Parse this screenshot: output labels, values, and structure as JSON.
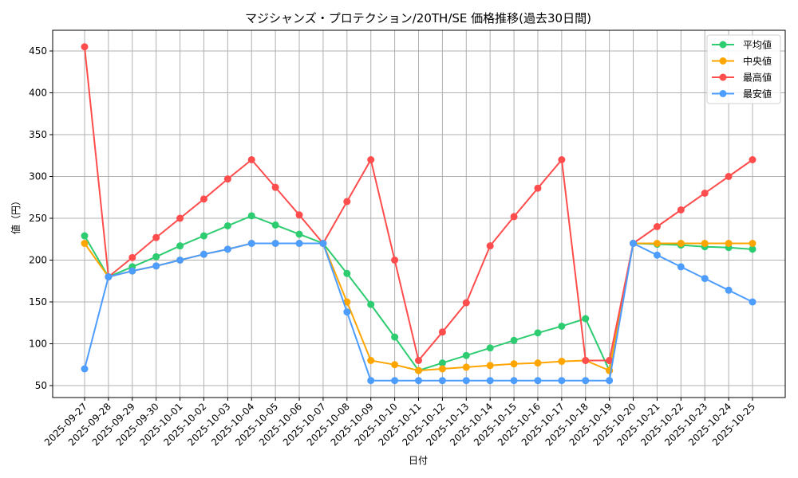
{
  "chart_data": {
    "type": "line",
    "title": "マジシャンズ・プロテクション/20TH/SE 価格推移(過去30日間)",
    "xlabel": "日付",
    "ylabel": "値（円）",
    "ylim": [
      35,
      475
    ],
    "yticks": [
      50,
      100,
      150,
      200,
      250,
      300,
      350,
      400,
      450
    ],
    "grid": true,
    "legend_position": "upper right",
    "categories": [
      "2025-09-27",
      "2025-09-28",
      "2025-09-29",
      "2025-09-30",
      "2025-10-01",
      "2025-10-02",
      "2025-10-03",
      "2025-10-04",
      "2025-10-05",
      "2025-10-06",
      "2025-10-07",
      "2025-10-08",
      "2025-10-09",
      "2025-10-10",
      "2025-10-11",
      "2025-10-12",
      "2025-10-13",
      "2025-10-14",
      "2025-10-15",
      "2025-10-16",
      "2025-10-17",
      "2025-10-18",
      "2025-10-19",
      "2025-10-20",
      "2025-10-21",
      "2025-10-22",
      "2025-10-23",
      "2025-10-24",
      "2025-10-25"
    ],
    "series": [
      {
        "name": "平均値",
        "color": "#2ecc71",
        "values": [
          229,
          180,
          192,
          204,
          217,
          229,
          241,
          253,
          242,
          231,
          220,
          184,
          147,
          108,
          68,
          77,
          86,
          95,
          104,
          113,
          121,
          130,
          68,
          220,
          219,
          218,
          216,
          215,
          213
        ]
      },
      {
        "name": "中央値",
        "color": "#ffa500",
        "values": [
          220,
          180,
          187,
          193,
          200,
          207,
          213,
          220,
          220,
          220,
          220,
          150,
          80,
          75,
          68,
          70,
          72,
          74,
          76,
          77,
          79,
          80,
          68,
          220,
          220,
          220,
          220,
          220,
          220
        ]
      },
      {
        "name": "最高値",
        "color": "#ff4d4d",
        "values": [
          455,
          180,
          203,
          227,
          250,
          273,
          297,
          320,
          287,
          254,
          220,
          270,
          320,
          200,
          80,
          114,
          149,
          217,
          252,
          286,
          320,
          80,
          80,
          220,
          240,
          260,
          280,
          300,
          320
        ]
      },
      {
        "name": "最安値",
        "color": "#4d9dff",
        "values": [
          70,
          180,
          187,
          193,
          200,
          207,
          213,
          220,
          220,
          220,
          220,
          138,
          56,
          56,
          56,
          56,
          56,
          56,
          56,
          56,
          56,
          56,
          56,
          220,
          206,
          192,
          178,
          164,
          150
        ]
      }
    ]
  }
}
